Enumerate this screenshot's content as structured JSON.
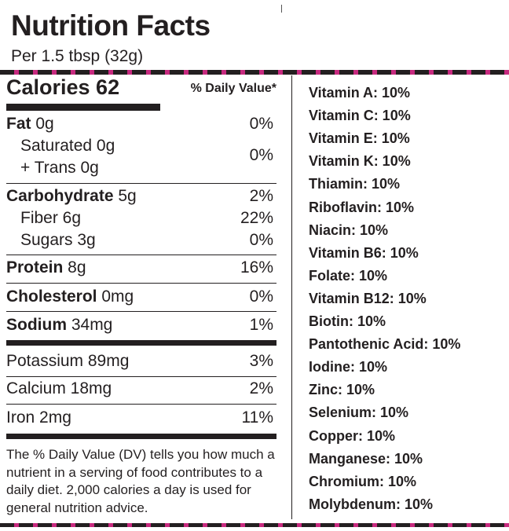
{
  "header": {
    "title": "Nutrition Facts",
    "serving": "Per 1.5 tbsp (32g)"
  },
  "calories": {
    "label": "Calories 62",
    "dv_header": "% Daily Value*"
  },
  "nutrients": {
    "fat": {
      "name": "Fat",
      "amount": " 0g",
      "pct": "0%"
    },
    "saturated": {
      "name": "Saturated 0g"
    },
    "trans": {
      "name": "+ Trans 0g",
      "pct": "0%"
    },
    "carbohydrate": {
      "name": "Carbohydrate",
      "amount": " 5g",
      "pct": "2%"
    },
    "fiber": {
      "name": "Fiber 6g",
      "pct": "22%"
    },
    "sugars": {
      "name": "Sugars 3g",
      "pct": "0%"
    },
    "protein": {
      "name": "Protein",
      "amount": " 8g",
      "pct": "16%"
    },
    "cholesterol": {
      "name": "Cholesterol",
      "amount": " 0mg",
      "pct": "0%"
    },
    "sodium": {
      "name": "Sodium",
      "amount": " 34mg",
      "pct": "1%"
    },
    "potassium": {
      "name": "Potassium 89mg",
      "pct": "3%"
    },
    "calcium": {
      "name": "Calcium 18mg",
      "pct": "2%"
    },
    "iron": {
      "name": "Iron 2mg",
      "pct": "11%"
    }
  },
  "footnote": "The % Daily Value (DV) tells you how much a nutrient in a serving of food contributes to a daily diet. 2,000 calories a day is used for general nutrition advice.",
  "vitamins": [
    "Vitamin A: 10%",
    "Vitamin C: 10%",
    "Vitamin E: 10%",
    "Vitamin K: 10%",
    "Thiamin: 10%",
    "Riboflavin: 10%",
    "Niacin: 10%",
    "Vitamin B6: 10%",
    "Folate: 10%",
    "Vitamin B12: 10%",
    "Biotin: 10%",
    "Pantothenic Acid: 10%",
    "Iodine: 10%",
    "Zinc: 10%",
    "Selenium: 10%",
    "Copper: 10%",
    "Manganese: 10%",
    "Chromium: 10%",
    "Molybdenum: 10%"
  ],
  "colors": {
    "ink": "#231f20",
    "accent_dash": "#c72a7f"
  }
}
